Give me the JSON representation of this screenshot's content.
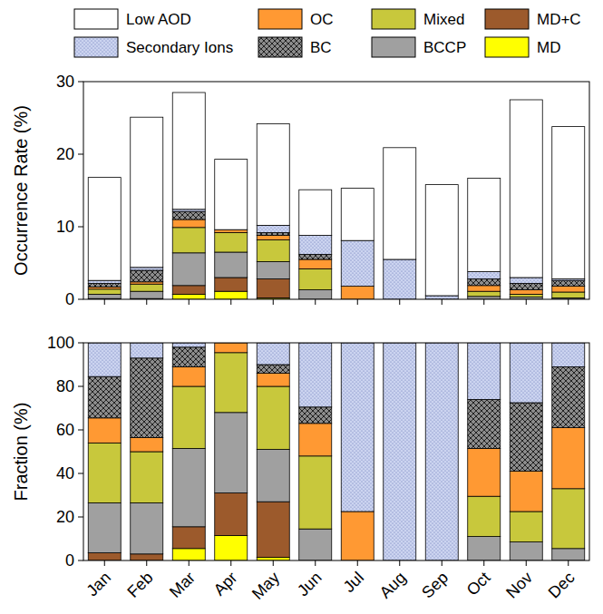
{
  "chart_data": [
    {
      "type": "bar",
      "stacked": true,
      "legend": "top",
      "tick_labels": "y",
      "grid": false,
      "y_label": "Occurrence Rate (%)",
      "categories": [
        "Jan",
        "Feb",
        "Mar",
        "Apr",
        "May",
        "Jun",
        "Jul",
        "Aug",
        "Sep",
        "Oct",
        "Nov",
        "Dec"
      ],
      "ylim": [
        0,
        30
      ],
      "yticks": [
        0,
        10,
        20,
        30
      ],
      "series": [
        {
          "name": "MD",
          "color": "#ffff00",
          "values": [
            0,
            0,
            0.7,
            1.1,
            0.2,
            0,
            0,
            0,
            0,
            0,
            0,
            0
          ]
        },
        {
          "name": "MD+C",
          "color": "#9c5a2c",
          "values": [
            0.1,
            0.1,
            1.2,
            1.9,
            2.6,
            0,
            0,
            0,
            0,
            0,
            0,
            0
          ]
        },
        {
          "name": "BCCP",
          "color": "#a0a0a0",
          "values": [
            0.6,
            1.0,
            4.5,
            3.5,
            2.4,
            1.3,
            0,
            0,
            0,
            0.4,
            0.3,
            0.2
          ]
        },
        {
          "name": "Mixed",
          "color": "#c8c83c",
          "values": [
            0.7,
            1.0,
            3.5,
            2.7,
            3.0,
            2.9,
            0,
            0,
            0,
            0.7,
            0.4,
            0.8
          ]
        },
        {
          "name": "OC",
          "color": "#ff9933",
          "values": [
            0.3,
            0.3,
            1.1,
            0.4,
            0.6,
            1.3,
            1.8,
            0,
            0,
            0.8,
            0.6,
            0.8
          ]
        },
        {
          "name": "BC",
          "color": "#8c8c8c",
          "values": [
            0.5,
            1.6,
            1.1,
            0,
            0.4,
            0.7,
            0,
            0,
            0,
            0.9,
            0.9,
            0.8
          ]
        },
        {
          "name": "Secondary Ions",
          "color": "#ccd4f0",
          "values": [
            0.4,
            0.4,
            0.3,
            0,
            1.0,
            2.6,
            6.3,
            5.5,
            0.5,
            1.0,
            0.8,
            0.2
          ]
        },
        {
          "name": "Low AOD",
          "color": "#ffffff",
          "values": [
            14.2,
            20.7,
            16.1,
            9.7,
            14.0,
            6.3,
            7.2,
            15.4,
            15.3,
            12.9,
            24.5,
            21.0
          ]
        }
      ]
    },
    {
      "type": "bar",
      "stacked": true,
      "grid": false,
      "y_label": "Fraction (%)",
      "categories": [
        "Jan",
        "Feb",
        "Mar",
        "Apr",
        "May",
        "Jun",
        "Jul",
        "Aug",
        "Sep",
        "Oct",
        "Nov",
        "Dec"
      ],
      "ylim": [
        0,
        100
      ],
      "yticks": [
        0,
        20,
        40,
        60,
        80,
        100
      ],
      "series": [
        {
          "name": "MD",
          "color": "#ffff00",
          "values": [
            0,
            0,
            5.5,
            11.5,
            1.5,
            0,
            0,
            0,
            0,
            0,
            0,
            0
          ]
        },
        {
          "name": "MD+C",
          "color": "#9c5a2c",
          "values": [
            3.5,
            3,
            10,
            19.5,
            25.5,
            0,
            0,
            0,
            0,
            0,
            0,
            0
          ]
        },
        {
          "name": "BCCP",
          "color": "#a0a0a0",
          "values": [
            23,
            23.5,
            36,
            37,
            24,
            14.5,
            0,
            0,
            0,
            11,
            8.5,
            5.5
          ]
        },
        {
          "name": "Mixed",
          "color": "#c8c83c",
          "values": [
            27.5,
            23.5,
            28.5,
            27.5,
            29,
            33.5,
            0,
            0,
            0,
            18.5,
            14,
            27.5
          ]
        },
        {
          "name": "OC",
          "color": "#ff9933",
          "values": [
            11.5,
            6.5,
            9,
            4.5,
            6,
            15,
            22.5,
            0,
            0,
            22,
            18.5,
            28
          ]
        },
        {
          "name": "BC",
          "color": "#8c8c8c",
          "values": [
            19,
            36.5,
            9,
            0,
            4,
            7.5,
            0,
            0,
            0,
            22.5,
            31.5,
            28
          ]
        },
        {
          "name": "Secondary Ions",
          "color": "#ccd4f0",
          "values": [
            15.5,
            7,
            2,
            0,
            10,
            29.5,
            77.5,
            100,
            100,
            26,
            27.5,
            11
          ]
        }
      ]
    }
  ]
}
